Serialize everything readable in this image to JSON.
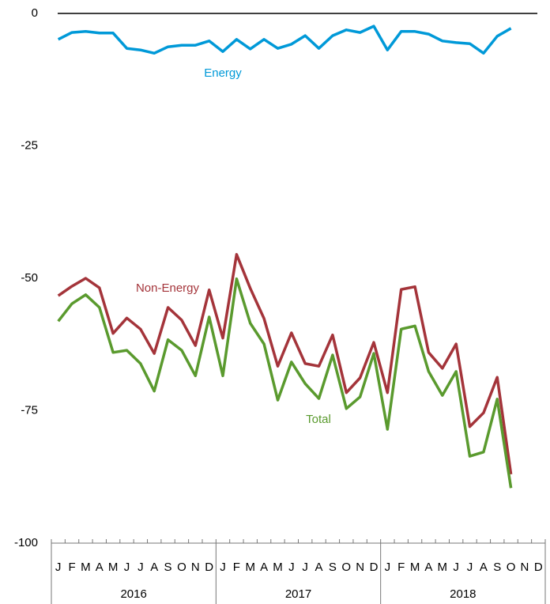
{
  "chart_data": {
    "type": "line",
    "categories": [
      "J",
      "F",
      "M",
      "A",
      "M",
      "J",
      "J",
      "A",
      "S",
      "O",
      "N",
      "D",
      "J",
      "F",
      "M",
      "A",
      "M",
      "J",
      "J",
      "A",
      "S",
      "O",
      "N",
      "D",
      "J",
      "F",
      "M",
      "A",
      "M",
      "J",
      "J",
      "A",
      "S",
      "O",
      "N",
      "D"
    ],
    "year_groups": [
      "2016",
      "2017",
      "2018"
    ],
    "ylim": [
      -100,
      0
    ],
    "yticks": [
      0,
      -25,
      -50,
      -75,
      -100
    ],
    "series": [
      {
        "name": "Energy",
        "color": "#0099d8",
        "values": [
          -4.9,
          -3.6,
          -3.4,
          -3.7,
          -3.7,
          -6.6,
          -6.9,
          -7.5,
          -6.3,
          -6.0,
          -6.0,
          -5.2,
          -7.2,
          -4.9,
          -6.7,
          -4.9,
          -6.6,
          -5.8,
          -4.2,
          -6.6,
          -4.2,
          -3.1,
          -3.6,
          -2.4,
          -6.9,
          -3.4,
          -3.4,
          -3.9,
          -5.2,
          -5.5,
          -5.7,
          -7.5,
          -4.3,
          -2.8,
          null,
          null
        ]
      },
      {
        "name": "Non-Energy",
        "color": "#a4343a",
        "values": [
          -53.3,
          -51.5,
          -50,
          -51.8,
          -60.4,
          -57.5,
          -59.6,
          -64.2,
          -55.5,
          -57.9,
          -62.7,
          -52.2,
          -61.3,
          -45.5,
          -51.9,
          -57.6,
          -66.6,
          -60.3,
          -66.1,
          -66.6,
          -60.7,
          -71.6,
          -68.8,
          -62.1,
          -71.6,
          -52.1,
          -51.6,
          -64,
          -67,
          -62.4,
          -78,
          -75.4,
          -68.7,
          -87,
          null,
          null
        ]
      },
      {
        "name": "Total",
        "color": "#5a9a2e",
        "values": [
          -58.1,
          -54.8,
          -53.1,
          -55.5,
          -64,
          -63.6,
          -66.1,
          -71.3,
          -61.6,
          -63.6,
          -68.4,
          -57.3,
          -68.4,
          -50.1,
          -58.5,
          -62.4,
          -73,
          -65.8,
          -69.9,
          -72.7,
          -64.5,
          -74.6,
          -72.4,
          -64.2,
          -78.5,
          -59.6,
          -59,
          -67.6,
          -72.1,
          -67.6,
          -83.6,
          -82.8,
          -72.8,
          -89.6,
          null,
          null
        ]
      }
    ]
  }
}
